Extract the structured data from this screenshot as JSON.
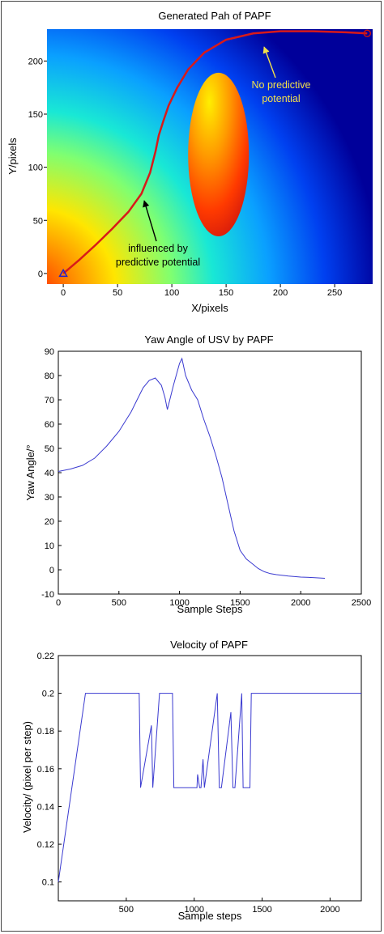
{
  "chart_data": [
    {
      "type": "heatmap",
      "title": "Generated Pah of PAPF",
      "xlabel": "X/pixels",
      "ylabel": "Y/pixels",
      "xlim": [
        -15,
        285
      ],
      "ylim": [
        -10,
        230
      ],
      "xticks": [
        0,
        50,
        100,
        150,
        200,
        250
      ],
      "yticks": [
        0,
        50,
        100,
        150,
        200
      ],
      "obstacle": {
        "center": [
          143,
          112
        ],
        "semi_axis_x": 28,
        "semi_axis_y": 77
      },
      "path_series": {
        "name": "",
        "x": [
          0,
          15,
          30,
          45,
          60,
          72,
          80,
          85,
          88,
          92,
          97,
          105,
          115,
          130,
          150,
          175,
          200,
          230,
          260,
          280
        ],
        "y": [
          0,
          13,
          27,
          42,
          58,
          75,
          95,
          115,
          130,
          143,
          158,
          175,
          192,
          208,
          220,
          226,
          228,
          228,
          227,
          226
        ]
      },
      "start_marker": {
        "x": 0,
        "y": 0,
        "symbol": "triangle"
      },
      "goal_marker": {
        "x": 280,
        "y": 226,
        "symbol": "circle"
      },
      "annotations": [
        {
          "text_lines": [
            "No predictive",
            "potential"
          ],
          "color": "#f2e14a"
        },
        {
          "text_lines": [
            "influenced by",
            "predictive potential"
          ],
          "color": "#000000"
        }
      ]
    },
    {
      "type": "line",
      "title": "Yaw Angle of USV by PAPF",
      "xlabel": "Sample Steps",
      "ylabel": "Yaw Angle/°",
      "xlim": [
        0,
        2500
      ],
      "ylim": [
        -10,
        90
      ],
      "xticks": [
        0,
        500,
        1000,
        1500,
        2000,
        2500
      ],
      "yticks": [
        -10,
        0,
        10,
        20,
        30,
        40,
        50,
        60,
        70,
        80,
        90
      ],
      "series": [
        {
          "name": "",
          "x": [
            0,
            100,
            200,
            300,
            400,
            500,
            600,
            650,
            700,
            750,
            800,
            850,
            880,
            900,
            950,
            1000,
            1020,
            1050,
            1100,
            1150,
            1200,
            1250,
            1300,
            1350,
            1400,
            1450,
            1500,
            1550,
            1600,
            1650,
            1700,
            1750,
            1800,
            1850,
            1900,
            2000,
            2100,
            2200
          ],
          "y": [
            40.5,
            41.5,
            43,
            46,
            51,
            57,
            65,
            70,
            75,
            78,
            79,
            76,
            71,
            66,
            76,
            85,
            87,
            80,
            74,
            70,
            62,
            55,
            47,
            38,
            27,
            16,
            8,
            4.5,
            2.5,
            0.5,
            -0.8,
            -1.6,
            -2,
            -2.3,
            -2.6,
            -3,
            -3.2,
            -3.5
          ]
        }
      ]
    },
    {
      "type": "line",
      "title": "Velocity of PAPF",
      "xlabel": "Sample steps",
      "ylabel": "Velocity/ (pixel per step)",
      "xlim": [
        0,
        2230
      ],
      "ylim": [
        0.09,
        0.22
      ],
      "xticks": [
        500,
        1000,
        1500,
        2000
      ],
      "yticks": [
        0.1,
        0.12,
        0.14,
        0.16,
        0.18,
        0.2,
        0.22
      ],
      "series": [
        {
          "name": "",
          "x": [
            0,
            200,
            595,
            605,
            685,
            695,
            745,
            790,
            840,
            850,
            860,
            1020,
            1025,
            1040,
            1050,
            1065,
            1075,
            1170,
            1185,
            1200,
            1270,
            1285,
            1300,
            1350,
            1360,
            1410,
            1420,
            1515,
            1530,
            2230
          ],
          "y": [
            0.1,
            0.2,
            0.2,
            0.15,
            0.183,
            0.15,
            0.2,
            0.2,
            0.2,
            0.15,
            0.15,
            0.15,
            0.157,
            0.15,
            0.15,
            0.165,
            0.15,
            0.2,
            0.15,
            0.15,
            0.19,
            0.15,
            0.15,
            0.2,
            0.15,
            0.15,
            0.2,
            0.2,
            0.2,
            0.2
          ]
        }
      ]
    }
  ]
}
